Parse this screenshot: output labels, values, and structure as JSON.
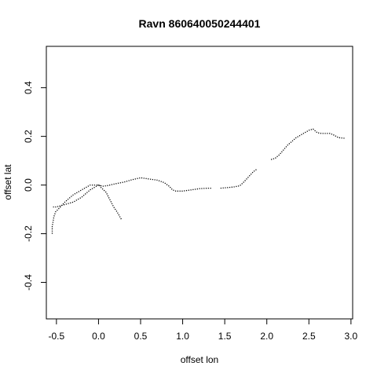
{
  "chart_data": {
    "type": "scatter",
    "title": "Ravn 860640050244401",
    "xlabel": "offset lon",
    "ylabel": "offset lat",
    "xlim": [
      -0.62,
      3.02
    ],
    "ylim": [
      -0.55,
      0.57
    ],
    "xticks": [
      -0.5,
      0.0,
      0.5,
      1.0,
      1.5,
      2.0,
      2.5,
      3.0
    ],
    "xtick_labels": [
      "-0.5",
      "0.0",
      "0.5",
      "1.0",
      "1.5",
      "2.0",
      "2.5",
      "3.0"
    ],
    "yticks": [
      -0.4,
      -0.2,
      0.0,
      0.2,
      0.4
    ],
    "ytick_labels": [
      "-0.4",
      "-0.2",
      "0.0",
      "0.2",
      "0.4"
    ],
    "grid": false,
    "series": [
      {
        "points": [
          [
            0.27,
            -0.14
          ],
          [
            0.22,
            -0.11
          ],
          [
            0.18,
            -0.09
          ],
          [
            0.15,
            -0.07
          ],
          [
            0.12,
            -0.05
          ],
          [
            0.09,
            -0.03
          ],
          [
            0.06,
            -0.02
          ],
          [
            0.03,
            -0.01
          ],
          [
            0.01,
            0.0
          ]
        ]
      },
      {
        "points": [
          [
            0.0,
            0.0
          ],
          [
            -0.05,
            -0.01
          ],
          [
            -0.1,
            -0.02
          ],
          [
            -0.15,
            -0.035
          ],
          [
            -0.2,
            -0.05
          ],
          [
            -0.25,
            -0.06
          ],
          [
            -0.3,
            -0.07
          ],
          [
            -0.4,
            -0.08
          ],
          [
            -0.5,
            -0.09
          ],
          [
            -0.54,
            -0.09
          ]
        ]
      },
      {
        "points": [
          [
            -0.55,
            -0.2
          ],
          [
            -0.55,
            -0.17
          ],
          [
            -0.54,
            -0.15
          ],
          [
            -0.53,
            -0.13
          ],
          [
            -0.51,
            -0.11
          ],
          [
            -0.48,
            -0.1
          ],
          [
            -0.44,
            -0.085
          ],
          [
            -0.4,
            -0.07
          ],
          [
            -0.35,
            -0.055
          ],
          [
            -0.3,
            -0.04
          ],
          [
            -0.25,
            -0.03
          ],
          [
            -0.2,
            -0.02
          ],
          [
            -0.15,
            -0.01
          ],
          [
            -0.1,
            0.0
          ],
          [
            -0.05,
            0.0
          ],
          [
            0.0,
            0.0
          ],
          [
            0.05,
            -0.005
          ],
          [
            0.1,
            -0.003
          ],
          [
            0.2,
            0.005
          ],
          [
            0.3,
            0.012
          ],
          [
            0.4,
            0.022
          ],
          [
            0.5,
            0.03
          ],
          [
            0.6,
            0.025
          ],
          [
            0.7,
            0.02
          ],
          [
            0.78,
            0.01
          ],
          [
            0.84,
            -0.005
          ],
          [
            0.88,
            -0.02
          ],
          [
            0.92,
            -0.025
          ],
          [
            1.0,
            -0.025
          ],
          [
            1.1,
            -0.02
          ],
          [
            1.2,
            -0.015
          ],
          [
            1.3,
            -0.013
          ],
          [
            1.35,
            -0.013
          ]
        ]
      },
      {
        "points": [
          [
            1.45,
            -0.013
          ],
          [
            1.55,
            -0.01
          ],
          [
            1.62,
            -0.007
          ],
          [
            1.68,
            -0.003
          ],
          [
            1.72,
            0.01
          ],
          [
            1.76,
            0.025
          ],
          [
            1.8,
            0.04
          ],
          [
            1.84,
            0.055
          ],
          [
            1.88,
            0.065
          ]
        ]
      },
      {
        "points": [
          [
            2.05,
            0.105
          ],
          [
            2.1,
            0.11
          ],
          [
            2.15,
            0.125
          ],
          [
            2.2,
            0.145
          ],
          [
            2.25,
            0.165
          ],
          [
            2.3,
            0.18
          ],
          [
            2.35,
            0.195
          ],
          [
            2.4,
            0.205
          ],
          [
            2.45,
            0.215
          ],
          [
            2.5,
            0.225
          ],
          [
            2.55,
            0.23
          ],
          [
            2.6,
            0.215
          ],
          [
            2.65,
            0.212
          ],
          [
            2.7,
            0.212
          ],
          [
            2.75,
            0.212
          ],
          [
            2.8,
            0.205
          ],
          [
            2.85,
            0.195
          ],
          [
            2.9,
            0.193
          ],
          [
            2.93,
            0.192
          ]
        ]
      }
    ]
  }
}
